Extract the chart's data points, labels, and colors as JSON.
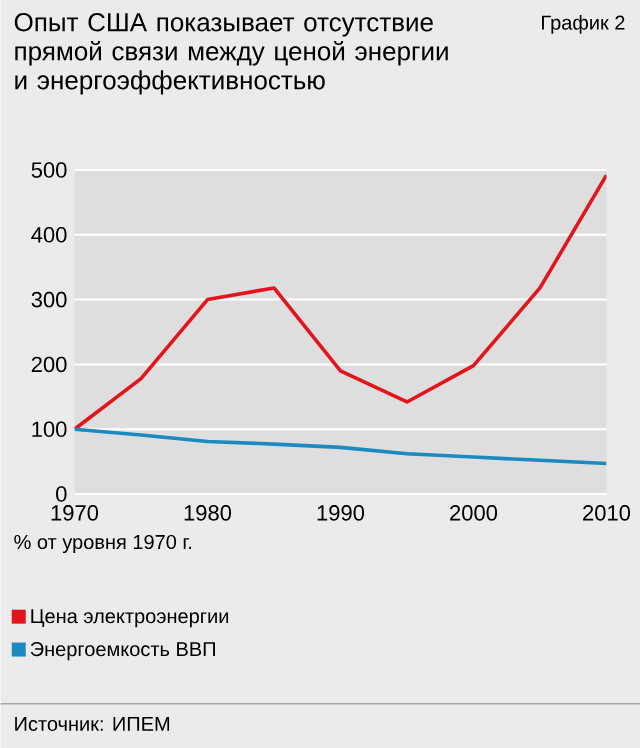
{
  "chart_data": {
    "type": "line",
    "title": "Опыт США показывает отсутствие прямой связи между ценой энергии и энергоэффективностью",
    "subtitle": "График 2",
    "x": [
      1970,
      1975,
      1980,
      1985,
      1990,
      1995,
      2000,
      2005,
      2010
    ],
    "series": [
      {
        "name": "Цена электроэнергии",
        "color": "#e2141c",
        "values": [
          100,
          178,
          300,
          318,
          190,
          142,
          198,
          318,
          492
        ]
      },
      {
        "name": "Энергоемкость ВВП",
        "color": "#1b8ac0",
        "values": [
          100,
          91,
          81,
          77,
          72,
          62,
          57,
          52,
          47
        ]
      }
    ],
    "xlim": [
      1970,
      2010
    ],
    "xticks": [
      1970,
      1980,
      1990,
      2000,
      2010
    ],
    "ylim": [
      0,
      500
    ],
    "yticks": [
      0,
      100,
      200,
      300,
      400,
      500
    ],
    "grid": "y",
    "legend": "bottom",
    "marker": "none",
    "line_style": "solid",
    "annotations": [
      "% от уровня 1970 г.",
      "Источник: ИПЕМ"
    ]
  }
}
